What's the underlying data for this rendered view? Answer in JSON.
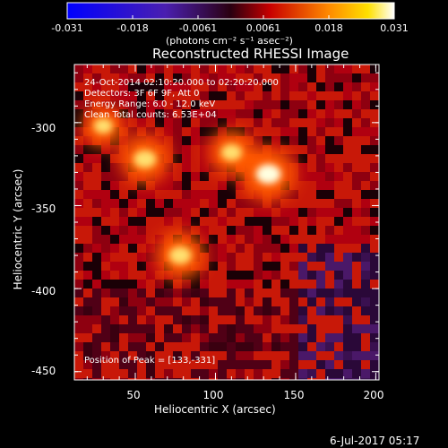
{
  "colorbar": {
    "ticks": [
      "-0.031",
      "-0.018",
      "-0.0061",
      "0.0061",
      "0.018",
      "0.031"
    ],
    "units": "(photons cm⁻² s⁻¹ asec⁻²)",
    "range": [
      -0.031,
      0.031
    ]
  },
  "chart_data": {
    "type": "heatmap",
    "title": "Reconstructed RHESSI Image",
    "xlabel": "Heliocentric X (arcsec)",
    "ylabel": "Heliocentric Y (arcsec)",
    "xlim": [
      12,
      202
    ],
    "ylim": [
      -455,
      -265
    ],
    "xticks": [
      50,
      100,
      150,
      200
    ],
    "yticks": [
      -300,
      -350,
      -400,
      -450
    ],
    "colormap": "blue-purple-red-yellow-white",
    "peak": [
      133,
      -331
    ],
    "sources": [
      {
        "x": 133,
        "y": -331,
        "intensity": 0.031
      },
      {
        "x": 110,
        "y": -318,
        "intensity": 0.022
      },
      {
        "x": 56,
        "y": -322,
        "intensity": 0.026
      },
      {
        "x": 78,
        "y": -380,
        "intensity": 0.025
      },
      {
        "x": 30,
        "y": -302,
        "intensity": 0.018
      }
    ],
    "annotations": [
      "24-Oct-2014 02:10:20.000 to 02:20:20.000",
      "Detectors: 3F 6F 9F, Att 0",
      "Energy Range: 6.0 - 12.0 keV",
      "Clean     Total counts: 6.53E+04",
      "Position of Peak = [133,-331]"
    ]
  },
  "footer": {
    "date": "6-Jul-2017 05:17"
  }
}
